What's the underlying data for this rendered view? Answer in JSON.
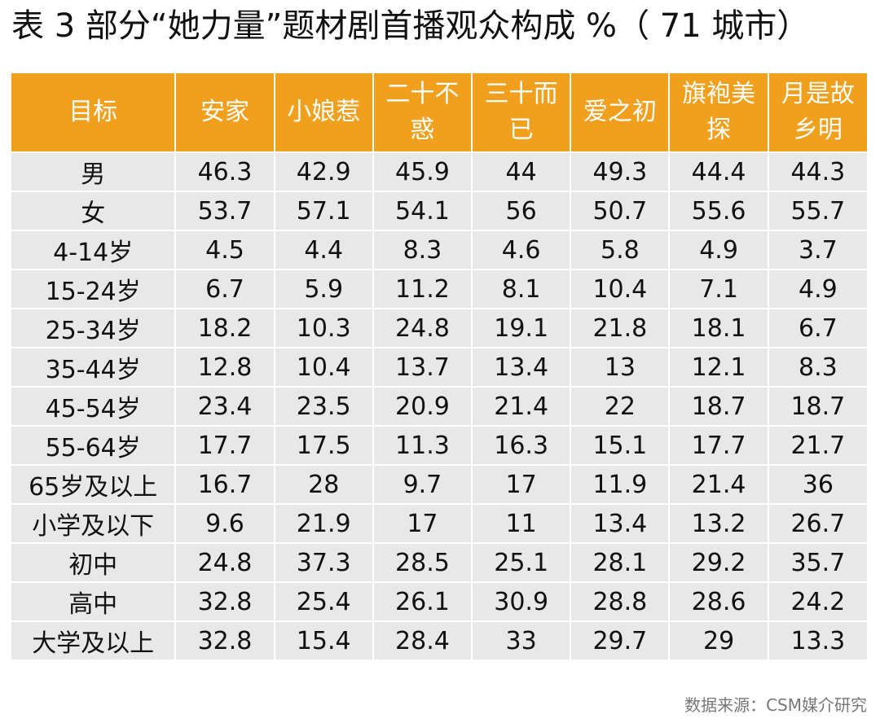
{
  "title": "表 3 部分“她力量”题材剧首播观众构成 %（ 71 城市）",
  "table": {
    "headers": [
      "目标",
      "安家",
      "小娘惹",
      "二十不惑",
      "三十而已",
      "爱之初",
      "旗袍美探",
      "月是故乡明"
    ],
    "rows": [
      [
        "男",
        "46.3",
        "42.9",
        "45.9",
        "44",
        "49.3",
        "44.4",
        "44.3"
      ],
      [
        "女",
        "53.7",
        "57.1",
        "54.1",
        "56",
        "50.7",
        "55.6",
        "55.7"
      ],
      [
        "4-14岁",
        "4.5",
        "4.4",
        "8.3",
        "4.6",
        "5.8",
        "4.9",
        "3.7"
      ],
      [
        "15-24岁",
        "6.7",
        "5.9",
        "11.2",
        "8.1",
        "10.4",
        "7.1",
        "4.9"
      ],
      [
        "25-34岁",
        "18.2",
        "10.3",
        "24.8",
        "19.1",
        "21.8",
        "18.1",
        "6.7"
      ],
      [
        "35-44岁",
        "12.8",
        "10.4",
        "13.7",
        "13.4",
        "13",
        "12.1",
        "8.3"
      ],
      [
        "45-54岁",
        "23.4",
        "23.5",
        "20.9",
        "21.4",
        "22",
        "18.7",
        "18.7"
      ],
      [
        "55-64岁",
        "17.7",
        "17.5",
        "11.3",
        "16.3",
        "15.1",
        "17.7",
        "21.7"
      ],
      [
        "65岁及以上",
        "16.7",
        "28",
        "9.7",
        "17",
        "11.9",
        "21.4",
        "36"
      ],
      [
        "小学及以下",
        "9.6",
        "21.9",
        "17",
        "11",
        "13.4",
        "13.2",
        "26.7"
      ],
      [
        "初中",
        "24.8",
        "37.3",
        "28.5",
        "25.1",
        "28.1",
        "29.2",
        "35.7"
      ],
      [
        "高中",
        "32.8",
        "25.4",
        "26.1",
        "30.9",
        "28.8",
        "28.6",
        "24.2"
      ],
      [
        "大学及以上",
        "32.8",
        "15.4",
        "28.4",
        "33",
        "29.7",
        "29",
        "13.3"
      ]
    ]
  },
  "source": "数据来源：CSM媒介研究",
  "colors": {
    "header_bg": "#f0a01c",
    "header_text": "#ffffff",
    "cell_bg": "#e8e8e8"
  }
}
